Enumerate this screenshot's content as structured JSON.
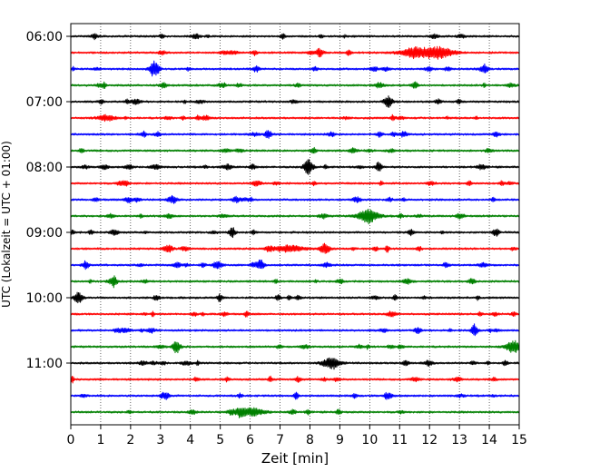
{
  "chart_data": {
    "type": "line",
    "title": "",
    "xlabel": "Zeit  [min]",
    "ylabel": "UTC (Lokalzeit = UTC + 01:00)",
    "xlim": [
      0,
      15
    ],
    "x_ticks": [
      0,
      1,
      2,
      3,
      4,
      5,
      6,
      7,
      8,
      9,
      10,
      11,
      12,
      13,
      14,
      15
    ],
    "x_tick_labels": [
      "0",
      "1",
      "2",
      "3",
      "4",
      "5",
      "6",
      "7",
      "8",
      "9",
      "10",
      "11",
      "12",
      "13",
      "14",
      "15"
    ],
    "y_tick_labels": [
      "06:00",
      "07:00",
      "08:00",
      "09:00",
      "10:00",
      "11:00"
    ],
    "y_tick_rows": [
      0,
      4,
      8,
      12,
      16,
      20
    ],
    "trace_count": 24,
    "trace_interval_min": 15,
    "trace_start": "06:00",
    "grid": {
      "vertical": true,
      "style": "dotted"
    },
    "trace_colors": [
      "#000000",
      "#ff0000",
      "#0000ff",
      "#008000"
    ],
    "events": [
      {
        "row": 1,
        "center": 12.3,
        "amplitude": 0.55,
        "width": 0.5
      },
      {
        "row": 1,
        "center": 11.6,
        "amplitude": 0.35,
        "width": 0.6
      },
      {
        "row": 2,
        "center": 2.8,
        "amplitude": 0.9,
        "width": 0.15
      },
      {
        "row": 2,
        "center": 6.2,
        "amplitude": 0.3,
        "width": 0.1
      },
      {
        "row": 3,
        "center": 11.5,
        "amplitude": 0.4,
        "width": 0.1
      },
      {
        "row": 4,
        "center": 10.6,
        "amplitude": 0.35,
        "width": 0.15
      },
      {
        "row": 5,
        "center": 1.2,
        "amplitude": 0.3,
        "width": 0.3
      },
      {
        "row": 6,
        "center": 6.6,
        "amplitude": 0.45,
        "width": 0.1
      },
      {
        "row": 8,
        "center": 7.95,
        "amplitude": 0.8,
        "width": 0.15
      },
      {
        "row": 8,
        "center": 10.3,
        "amplitude": 0.5,
        "width": 0.1
      },
      {
        "row": 10,
        "center": 3.4,
        "amplitude": 0.4,
        "width": 0.15
      },
      {
        "row": 11,
        "center": 9.95,
        "amplitude": 0.65,
        "width": 0.35
      },
      {
        "row": 12,
        "center": 5.4,
        "amplitude": 0.5,
        "width": 0.1
      },
      {
        "row": 12,
        "center": 14.2,
        "amplitude": 0.35,
        "width": 0.1
      },
      {
        "row": 13,
        "center": 8.5,
        "amplitude": 0.6,
        "width": 0.15
      },
      {
        "row": 13,
        "center": 7.3,
        "amplitude": 0.35,
        "width": 0.5
      },
      {
        "row": 14,
        "center": 6.35,
        "amplitude": 0.55,
        "width": 0.12
      },
      {
        "row": 14,
        "center": 0.5,
        "amplitude": 0.4,
        "width": 0.1
      },
      {
        "row": 16,
        "center": 0.25,
        "amplitude": 0.55,
        "width": 0.15
      },
      {
        "row": 18,
        "center": 13.5,
        "amplitude": 0.65,
        "width": 0.1
      },
      {
        "row": 19,
        "center": 14.8,
        "amplitude": 0.65,
        "width": 0.25
      },
      {
        "row": 20,
        "center": 8.7,
        "amplitude": 0.5,
        "width": 0.3
      },
      {
        "row": 20,
        "center": 11.2,
        "amplitude": 0.35,
        "width": 0.1
      },
      {
        "row": 21,
        "center": 7.6,
        "amplitude": 0.25,
        "width": 0.1
      },
      {
        "row": 22,
        "center": 3.2,
        "amplitude": 0.35,
        "width": 0.1
      },
      {
        "row": 23,
        "center": 6.1,
        "amplitude": 0.35,
        "width": 0.4
      }
    ]
  }
}
